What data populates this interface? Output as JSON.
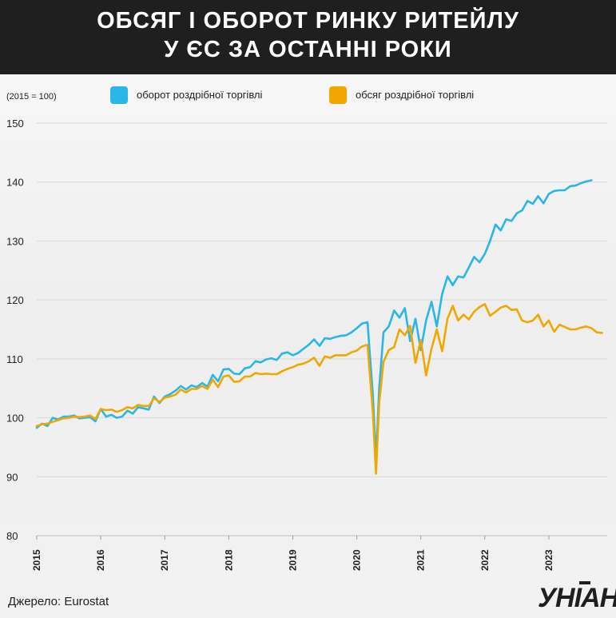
{
  "header": {
    "title_line1": "ОБСЯГ І ОБОРОТ РИНКУ РИТЕЙЛУ",
    "title_line2": "У ЄС ЗА ОСТАННІ РОКИ"
  },
  "footer": {
    "source": "Джерело: Eurostat",
    "logo": "УНІАН"
  },
  "colors": {
    "turnover": "#29b6e8",
    "volume": "#f0a800",
    "grid": "#d9d9d9",
    "text": "#222222"
  },
  "chart_data": {
    "type": "line",
    "unit_note": "(2015 = 100)",
    "ylim": [
      80,
      150
    ],
    "yticks": [
      80,
      90,
      100,
      110,
      120,
      130,
      140,
      150
    ],
    "xlim": [
      2015,
      2023.75
    ],
    "xticks": [
      2015,
      2016,
      2017,
      2018,
      2019,
      2020,
      2021,
      2022,
      2023
    ],
    "grid": true,
    "legend_position": "top",
    "series": [
      {
        "name": "оборот роздрібної торгівлі",
        "color": "#29b6e8",
        "points": [
          [
            2015.0,
            98.3
          ],
          [
            2015.083,
            99.0
          ],
          [
            2015.167,
            98.6
          ],
          [
            2015.25,
            100.0
          ],
          [
            2015.333,
            99.7
          ],
          [
            2015.417,
            100.2
          ],
          [
            2015.5,
            100.2
          ],
          [
            2015.583,
            100.4
          ],
          [
            2015.667,
            99.9
          ],
          [
            2015.75,
            100.0
          ],
          [
            2015.833,
            100.1
          ],
          [
            2015.917,
            99.4
          ],
          [
            2016.0,
            101.5
          ],
          [
            2016.083,
            100.2
          ],
          [
            2016.167,
            100.5
          ],
          [
            2016.25,
            100.0
          ],
          [
            2016.333,
            100.2
          ],
          [
            2016.417,
            101.2
          ],
          [
            2016.5,
            100.7
          ],
          [
            2016.583,
            101.8
          ],
          [
            2016.667,
            101.6
          ],
          [
            2016.75,
            101.4
          ],
          [
            2016.833,
            103.6
          ],
          [
            2016.917,
            102.5
          ],
          [
            2017.0,
            103.6
          ],
          [
            2017.083,
            104.0
          ],
          [
            2017.167,
            104.6
          ],
          [
            2017.25,
            105.4
          ],
          [
            2017.333,
            104.8
          ],
          [
            2017.417,
            105.5
          ],
          [
            2017.5,
            105.2
          ],
          [
            2017.583,
            105.9
          ],
          [
            2017.667,
            105.3
          ],
          [
            2017.75,
            107.3
          ],
          [
            2017.833,
            106.2
          ],
          [
            2017.917,
            108.2
          ],
          [
            2018.0,
            108.3
          ],
          [
            2018.083,
            107.5
          ],
          [
            2018.167,
            107.4
          ],
          [
            2018.25,
            108.4
          ],
          [
            2018.333,
            108.6
          ],
          [
            2018.417,
            109.6
          ],
          [
            2018.5,
            109.4
          ],
          [
            2018.583,
            109.9
          ],
          [
            2018.667,
            110.1
          ],
          [
            2018.75,
            109.8
          ],
          [
            2018.833,
            110.9
          ],
          [
            2018.917,
            111.1
          ],
          [
            2019.0,
            110.6
          ],
          [
            2019.083,
            111.0
          ],
          [
            2019.167,
            111.7
          ],
          [
            2019.25,
            112.4
          ],
          [
            2019.333,
            113.3
          ],
          [
            2019.417,
            112.2
          ],
          [
            2019.5,
            113.5
          ],
          [
            2019.583,
            113.4
          ],
          [
            2019.667,
            113.7
          ],
          [
            2019.75,
            113.9
          ],
          [
            2019.833,
            114.0
          ],
          [
            2019.917,
            114.5
          ],
          [
            2020.0,
            115.2
          ],
          [
            2020.083,
            116.0
          ],
          [
            2020.167,
            116.2
          ],
          [
            2020.25,
            104.0
          ],
          [
            2020.3,
            93.0
          ],
          [
            2020.35,
            105.0
          ],
          [
            2020.417,
            114.5
          ],
          [
            2020.5,
            115.5
          ],
          [
            2020.583,
            118.2
          ],
          [
            2020.667,
            117.0
          ],
          [
            2020.75,
            118.6
          ],
          [
            2020.833,
            113.0
          ],
          [
            2020.917,
            116.8
          ],
          [
            2021.0,
            111.5
          ],
          [
            2021.083,
            116.5
          ],
          [
            2021.167,
            119.7
          ],
          [
            2021.25,
            115.5
          ],
          [
            2021.333,
            121.0
          ],
          [
            2021.417,
            124.0
          ],
          [
            2021.5,
            122.5
          ],
          [
            2021.583,
            124.0
          ],
          [
            2021.667,
            123.8
          ],
          [
            2021.75,
            125.5
          ],
          [
            2021.833,
            127.3
          ],
          [
            2021.917,
            126.4
          ],
          [
            2022.0,
            127.8
          ],
          [
            2022.083,
            130.0
          ],
          [
            2022.167,
            132.8
          ],
          [
            2022.25,
            131.8
          ],
          [
            2022.333,
            133.7
          ],
          [
            2022.417,
            133.4
          ],
          [
            2022.5,
            134.7
          ],
          [
            2022.583,
            135.2
          ],
          [
            2022.667,
            136.8
          ],
          [
            2022.75,
            136.3
          ],
          [
            2022.833,
            137.6
          ],
          [
            2022.917,
            136.4
          ],
          [
            2023.0,
            138.0
          ],
          [
            2023.083,
            138.5
          ],
          [
            2023.167,
            138.6
          ],
          [
            2023.25,
            138.6
          ],
          [
            2023.333,
            139.3
          ],
          [
            2023.417,
            139.4
          ],
          [
            2023.5,
            139.8
          ],
          [
            2023.583,
            140.1
          ],
          [
            2023.667,
            140.3
          ]
        ]
      },
      {
        "name": "обсяг роздрібної торгівлі",
        "color": "#f0a800",
        "points": [
          [
            2015.0,
            98.6
          ],
          [
            2015.083,
            98.9
          ],
          [
            2015.167,
            99.0
          ],
          [
            2015.25,
            99.3
          ],
          [
            2015.333,
            99.6
          ],
          [
            2015.417,
            99.9
          ],
          [
            2015.5,
            100.0
          ],
          [
            2015.583,
            100.2
          ],
          [
            2015.667,
            100.1
          ],
          [
            2015.75,
            100.2
          ],
          [
            2015.833,
            100.4
          ],
          [
            2015.917,
            99.8
          ],
          [
            2016.0,
            101.5
          ],
          [
            2016.083,
            101.3
          ],
          [
            2016.167,
            101.4
          ],
          [
            2016.25,
            101.0
          ],
          [
            2016.333,
            101.3
          ],
          [
            2016.417,
            101.8
          ],
          [
            2016.5,
            101.6
          ],
          [
            2016.583,
            102.2
          ],
          [
            2016.667,
            102.0
          ],
          [
            2016.75,
            102.0
          ],
          [
            2016.833,
            103.3
          ],
          [
            2016.917,
            102.7
          ],
          [
            2017.0,
            103.4
          ],
          [
            2017.083,
            103.6
          ],
          [
            2017.167,
            103.9
          ],
          [
            2017.25,
            104.8
          ],
          [
            2017.333,
            104.3
          ],
          [
            2017.417,
            104.9
          ],
          [
            2017.5,
            104.9
          ],
          [
            2017.583,
            105.4
          ],
          [
            2017.667,
            104.9
          ],
          [
            2017.75,
            106.5
          ],
          [
            2017.833,
            105.2
          ],
          [
            2017.917,
            107.0
          ],
          [
            2018.0,
            107.2
          ],
          [
            2018.083,
            106.1
          ],
          [
            2018.167,
            106.2
          ],
          [
            2018.25,
            107.0
          ],
          [
            2018.333,
            107.0
          ],
          [
            2018.417,
            107.6
          ],
          [
            2018.5,
            107.4
          ],
          [
            2018.583,
            107.5
          ],
          [
            2018.667,
            107.4
          ],
          [
            2018.75,
            107.4
          ],
          [
            2018.833,
            107.9
          ],
          [
            2018.917,
            108.3
          ],
          [
            2019.0,
            108.6
          ],
          [
            2019.083,
            109.0
          ],
          [
            2019.167,
            109.2
          ],
          [
            2019.25,
            109.6
          ],
          [
            2019.333,
            110.2
          ],
          [
            2019.417,
            108.8
          ],
          [
            2019.5,
            110.4
          ],
          [
            2019.583,
            110.2
          ],
          [
            2019.667,
            110.6
          ],
          [
            2019.75,
            110.6
          ],
          [
            2019.833,
            110.6
          ],
          [
            2019.917,
            111.1
          ],
          [
            2020.0,
            111.4
          ],
          [
            2020.083,
            112.1
          ],
          [
            2020.167,
            112.4
          ],
          [
            2020.25,
            101.0
          ],
          [
            2020.3,
            90.5
          ],
          [
            2020.35,
            102.5
          ],
          [
            2020.417,
            109.5
          ],
          [
            2020.5,
            111.5
          ],
          [
            2020.583,
            112.0
          ],
          [
            2020.667,
            115.0
          ],
          [
            2020.75,
            114.0
          ],
          [
            2020.833,
            115.6
          ],
          [
            2020.917,
            109.3
          ],
          [
            2021.0,
            113.2
          ],
          [
            2021.083,
            107.2
          ],
          [
            2021.167,
            111.7
          ],
          [
            2021.25,
            115.0
          ],
          [
            2021.333,
            111.3
          ],
          [
            2021.417,
            116.8
          ],
          [
            2021.5,
            119.0
          ],
          [
            2021.583,
            116.5
          ],
          [
            2021.667,
            117.5
          ],
          [
            2021.75,
            116.7
          ],
          [
            2021.833,
            118.0
          ],
          [
            2021.917,
            118.8
          ],
          [
            2022.0,
            119.3
          ],
          [
            2022.083,
            117.3
          ],
          [
            2022.167,
            118.0
          ],
          [
            2022.25,
            118.7
          ],
          [
            2022.333,
            119.0
          ],
          [
            2022.417,
            118.3
          ],
          [
            2022.5,
            118.4
          ],
          [
            2022.583,
            116.5
          ],
          [
            2022.667,
            116.2
          ],
          [
            2022.75,
            116.5
          ],
          [
            2022.833,
            117.5
          ],
          [
            2022.917,
            115.5
          ],
          [
            2023.0,
            116.5
          ],
          [
            2023.083,
            114.6
          ],
          [
            2023.167,
            115.8
          ],
          [
            2023.25,
            115.4
          ],
          [
            2023.333,
            115.0
          ],
          [
            2023.417,
            115.0
          ],
          [
            2023.5,
            115.3
          ],
          [
            2023.583,
            115.5
          ],
          [
            2023.667,
            115.2
          ],
          [
            2023.75,
            114.5
          ],
          [
            2023.833,
            114.4
          ]
        ]
      }
    ]
  }
}
